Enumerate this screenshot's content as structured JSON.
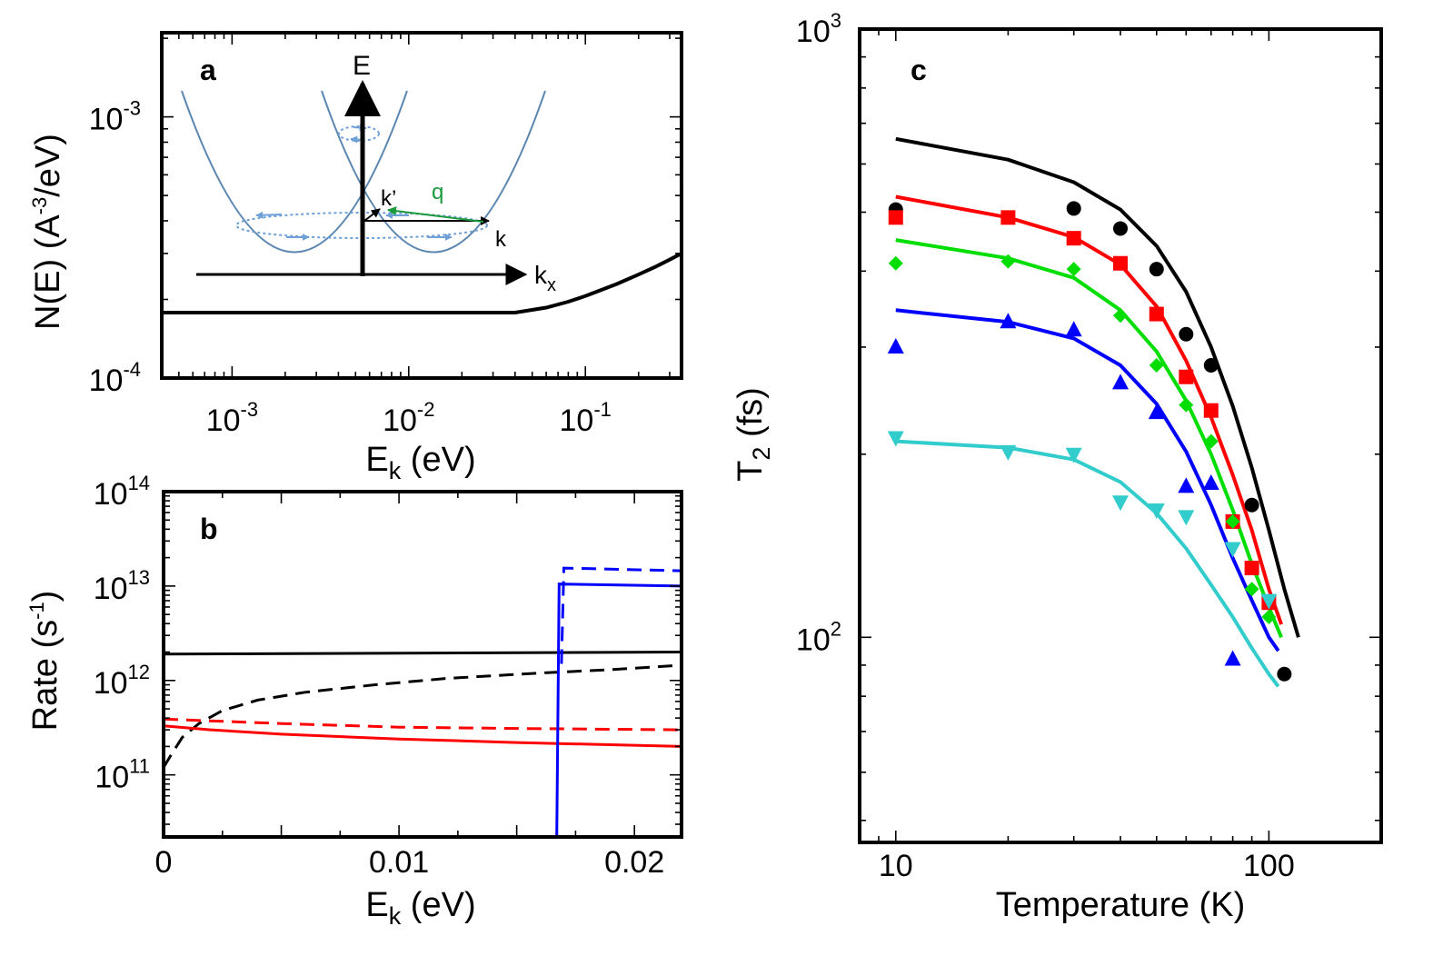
{
  "chart_data": [
    {
      "id": "a",
      "type": "line",
      "panel_label": "a",
      "xlabel": {
        "main": "E",
        "sub": "k",
        "unit": " (eV)"
      },
      "ylabel": {
        "prefix": "N(E) (A",
        "sup": "-3",
        "suffix": "/eV)"
      },
      "xscale": "log",
      "yscale": "log",
      "xlim": [
        0.0004,
        0.35
      ],
      "ylim": [
        0.0001,
        0.0021
      ],
      "xticklabels": [
        {
          "base": "10",
          "exp": "-3",
          "value": 0.001
        },
        {
          "base": "10",
          "exp": "-2",
          "value": 0.01
        },
        {
          "base": "10",
          "exp": "-1",
          "value": 0.1
        }
      ],
      "yticklabels": [
        {
          "base": "10",
          "exp": "-4",
          "value": 0.0001
        },
        {
          "base": "10",
          "exp": "-3",
          "value": 0.001
        }
      ],
      "series": [
        {
          "name": "N(E)",
          "color": "#000000",
          "style": "solid",
          "x": [
            0.0004,
            0.04,
            0.06,
            0.08,
            0.1,
            0.15,
            0.2,
            0.25,
            0.3,
            0.35
          ],
          "y": [
            0.000178,
            0.000178,
            0.000186,
            0.000196,
            0.000206,
            0.000229,
            0.000249,
            0.000267,
            0.000284,
            0.0003
          ]
        }
      ],
      "inset": {
        "description": "band schematic",
        "axis_labels": {
          "e": "E",
          "kx": "k",
          "kx_sub": "x",
          "k": "k",
          "kprime": "k’",
          "q": "q"
        },
        "colors": {
          "band": "#5b86b0",
          "q": "#1a9a3c",
          "arrows": "#6fa0d8"
        }
      }
    },
    {
      "id": "b",
      "type": "line",
      "panel_label": "b",
      "xlabel": {
        "main": "E",
        "sub": "k",
        "unit": " (eV)"
      },
      "ylabel": {
        "prefix": "Rate (s",
        "sup": "-1",
        "suffix": ")"
      },
      "xscale": "linear",
      "yscale": "log",
      "xlim": [
        0,
        0.022
      ],
      "ylim": [
        22000000000.0,
        100000000000000.0
      ],
      "xticklabels": [
        {
          "text": "0",
          "value": 0
        },
        {
          "text": "0.01",
          "value": 0.01
        },
        {
          "text": "0.02",
          "value": 0.02
        }
      ],
      "yticklabels": [
        {
          "base": "10",
          "exp": "11",
          "value": 100000000000.0
        },
        {
          "base": "10",
          "exp": "12",
          "value": 1000000000000.0
        },
        {
          "base": "10",
          "exp": "13",
          "value": 10000000000000.0
        },
        {
          "base": "10",
          "exp": "14",
          "value": 100000000000000.0
        }
      ],
      "series": [
        {
          "name": "black-solid",
          "color": "#000000",
          "style": "solid",
          "x": [
            0,
            0.022
          ],
          "y": [
            1900000000000.0,
            2000000000000.0
          ]
        },
        {
          "name": "black-dashed",
          "color": "#000000",
          "style": "dashed",
          "x": [
            0,
            0.0003,
            0.0008,
            0.0015,
            0.0025,
            0.004,
            0.006,
            0.009,
            0.012,
            0.016,
            0.019,
            0.022
          ],
          "y": [
            120000000000.0,
            160000000000.0,
            250000000000.0,
            350000000000.0,
            480000000000.0,
            620000000000.0,
            750000000000.0,
            900000000000.0,
            1050000000000.0,
            1200000000000.0,
            1300000000000.0,
            1450000000000.0
          ]
        },
        {
          "name": "red-solid",
          "color": "#ff0000",
          "style": "solid",
          "x": [
            0,
            0.002,
            0.005,
            0.01,
            0.015,
            0.022
          ],
          "y": [
            330000000000.0,
            300000000000.0,
            270000000000.0,
            240000000000.0,
            220000000000.0,
            200000000000.0
          ]
        },
        {
          "name": "red-dashed",
          "color": "#ff0000",
          "style": "dashed",
          "x": [
            0,
            0.005,
            0.01,
            0.015,
            0.022
          ],
          "y": [
            390000000000.0,
            350000000000.0,
            320000000000.0,
            310000000000.0,
            300000000000.0
          ]
        },
        {
          "name": "blue-solid",
          "color": "#0000ff",
          "style": "solid",
          "x": [
            0.0167,
            0.0168,
            0.0168,
            0.022
          ],
          "y": [
            22000000000.0,
            10000000000000.0,
            10500000000000.0,
            10000000000000.0
          ]
        },
        {
          "name": "blue-dashed",
          "color": "#0000ff",
          "style": "dashed",
          "x": [
            0.0169,
            0.017,
            0.022
          ],
          "y": [
            1500000000000.0,
            15500000000000.0,
            14500000000000.0
          ]
        }
      ]
    },
    {
      "id": "c",
      "type": "scatter",
      "panel_label": "c",
      "xlabel": "Temperature (K)",
      "ylabel": {
        "main": "T",
        "sub": "2",
        "suffix": " (fs)"
      },
      "xscale": "log",
      "yscale": "log",
      "xlim": [
        8,
        200
      ],
      "ylim": [
        46,
        1000
      ],
      "xticklabels": [
        {
          "text": "10",
          "value": 10
        },
        {
          "text": "100",
          "value": 100
        }
      ],
      "yticklabels": [
        {
          "base": "10",
          "exp": "2",
          "value": 100
        },
        {
          "base": "10",
          "exp": "3",
          "value": 1000
        }
      ],
      "series": [
        {
          "name": "black",
          "color": "#000000",
          "marker": "circle",
          "points": {
            "x": [
              10,
              30,
              40,
              50,
              60,
              70,
              90,
              110
            ],
            "y": [
              505,
              507,
              470,
              403,
              315,
              280,
              165,
              87
            ]
          },
          "fit": {
            "x": [
              10,
              20,
              30,
              40,
              50,
              60,
              70,
              80,
              90,
              100,
              110,
              120
            ],
            "y": [
              660,
              610,
              560,
              505,
              440,
              370,
              300,
              240,
              190,
              150,
              120,
              100
            ]
          }
        },
        {
          "name": "red",
          "color": "#ff0000",
          "marker": "square",
          "points": {
            "x": [
              10,
              20,
              30,
              40,
              50,
              60,
              70,
              80,
              90,
              100
            ],
            "y": [
              490,
              490,
              453,
              412,
              340,
              268,
              236,
              155,
              130,
              114
            ]
          },
          "fit": {
            "x": [
              10,
              20,
              30,
              40,
              50,
              60,
              70,
              80,
              90,
              100,
              108
            ],
            "y": [
              530,
              490,
              455,
              410,
              350,
              285,
              230,
              185,
              150,
              120,
              105
            ]
          }
        },
        {
          "name": "green",
          "color": "#00dd00",
          "marker": "diamond",
          "points": {
            "x": [
              10,
              20,
              30,
              40,
              50,
              60,
              70,
              80,
              90,
              100
            ],
            "y": [
              412,
              415,
              403,
              338,
              280,
              241,
              210,
              155,
              120,
              108
            ]
          },
          "fit": {
            "x": [
              10,
              20,
              30,
              40,
              50,
              60,
              70,
              80,
              90,
              100,
              108
            ],
            "y": [
              450,
              420,
              390,
              345,
              295,
              245,
              200,
              162,
              132,
              112,
              100
            ]
          }
        },
        {
          "name": "blue",
          "color": "#0000ff",
          "marker": "triangle-up",
          "points": {
            "x": [
              10,
              20,
              30,
              40,
              50,
              60,
              70,
              80
            ],
            "y": [
              300,
              330,
              320,
              262,
              234,
              177,
              179,
              92
            ]
          },
          "fit": {
            "x": [
              10,
              20,
              30,
              40,
              50,
              60,
              70,
              80,
              90,
              100,
              106
            ],
            "y": [
              345,
              330,
              310,
              280,
              242,
              202,
              165,
              135,
              115,
              100,
              95
            ]
          }
        },
        {
          "name": "cyan",
          "color": "#33cccc",
          "marker": "triangle-down",
          "points": {
            "x": [
              10,
              20,
              30,
              40,
              50,
              60,
              80,
              100
            ],
            "y": [
              213,
              202,
              200,
              167,
              162,
              158,
              140,
              115
            ]
          },
          "fit": {
            "x": [
              10,
              20,
              30,
              40,
              50,
              60,
              70,
              80,
              90,
              100,
              106
            ],
            "y": [
              210,
              205,
              196,
              180,
              160,
              140,
              122,
              108,
              96,
              87,
              83
            ]
          }
        }
      ]
    }
  ]
}
